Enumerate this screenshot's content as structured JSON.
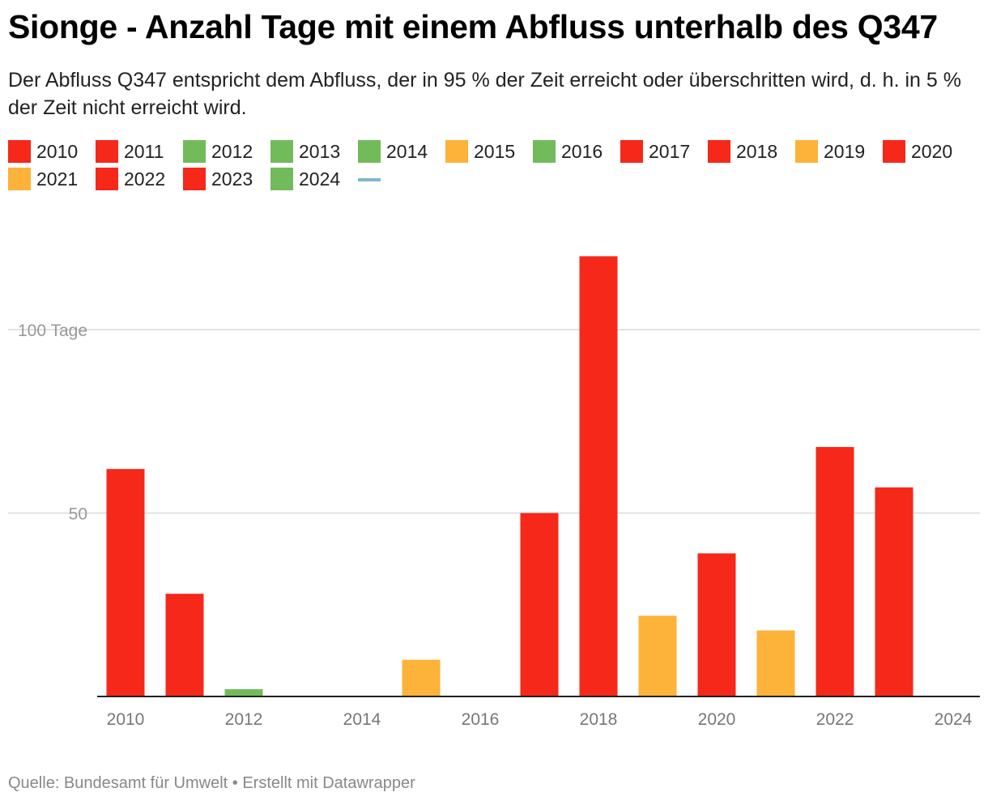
{
  "title": "Sionge - Anzahl Tage mit einem Abfluss unterhalb des Q347",
  "subtitle": "Der Abfluss Q347 entspricht dem Abfluss, der in 95 % der Zeit erreicht oder überschritten wird, d. h. in 5 % der Zeit nicht erreicht wird.",
  "footer": "Quelle: Bundesamt für Umwelt • Erstellt mit Datawrapper",
  "colors": {
    "red": "#f5281a",
    "green": "#72bb5b",
    "orange": "#fdb23a",
    "line": "#7fb6c9"
  },
  "legend": {
    "items": [
      {
        "label": "2010",
        "color": "#f5281a"
      },
      {
        "label": "2011",
        "color": "#f5281a"
      },
      {
        "label": "2012",
        "color": "#72bb5b"
      },
      {
        "label": "2013",
        "color": "#72bb5b"
      },
      {
        "label": "2014",
        "color": "#72bb5b"
      },
      {
        "label": "2015",
        "color": "#fdb23a"
      },
      {
        "label": "2016",
        "color": "#72bb5b"
      },
      {
        "label": "2017",
        "color": "#f5281a"
      },
      {
        "label": "2018",
        "color": "#f5281a"
      },
      {
        "label": "2019",
        "color": "#fdb23a"
      },
      {
        "label": "2020",
        "color": "#f5281a"
      },
      {
        "label": "2021",
        "color": "#fdb23a"
      },
      {
        "label": "2022",
        "color": "#f5281a"
      },
      {
        "label": "2023",
        "color": "#f5281a"
      },
      {
        "label": "2024",
        "color": "#72bb5b"
      }
    ],
    "line_color": "#7fb6c9"
  },
  "chart_data": {
    "type": "bar",
    "title": "Sionge - Anzahl Tage mit einem Abfluss unterhalb des Q347",
    "categories": [
      "2010",
      "2011",
      "2012",
      "2013",
      "2014",
      "2015",
      "2016",
      "2017",
      "2018",
      "2019",
      "2020",
      "2021",
      "2022",
      "2023",
      "2024"
    ],
    "values": [
      62,
      28,
      2,
      0,
      0,
      10,
      0,
      50,
      120,
      22,
      39,
      18,
      68,
      57,
      0
    ],
    "colors": [
      "#f5281a",
      "#f5281a",
      "#72bb5b",
      "#72bb5b",
      "#72bb5b",
      "#fdb23a",
      "#72bb5b",
      "#f5281a",
      "#f5281a",
      "#fdb23a",
      "#f5281a",
      "#fdb23a",
      "#f5281a",
      "#f5281a",
      "#72bb5b"
    ],
    "x_tick_labels": [
      "2010",
      "2012",
      "2014",
      "2016",
      "2018",
      "2020",
      "2022",
      "2024"
    ],
    "y_ticks": [
      50,
      100
    ],
    "y_tick_labels": [
      "50",
      "100 Tage"
    ],
    "ylim": [
      0,
      125
    ],
    "xlabel": "",
    "ylabel": "Tage",
    "grid": true,
    "legend_position": "top"
  }
}
